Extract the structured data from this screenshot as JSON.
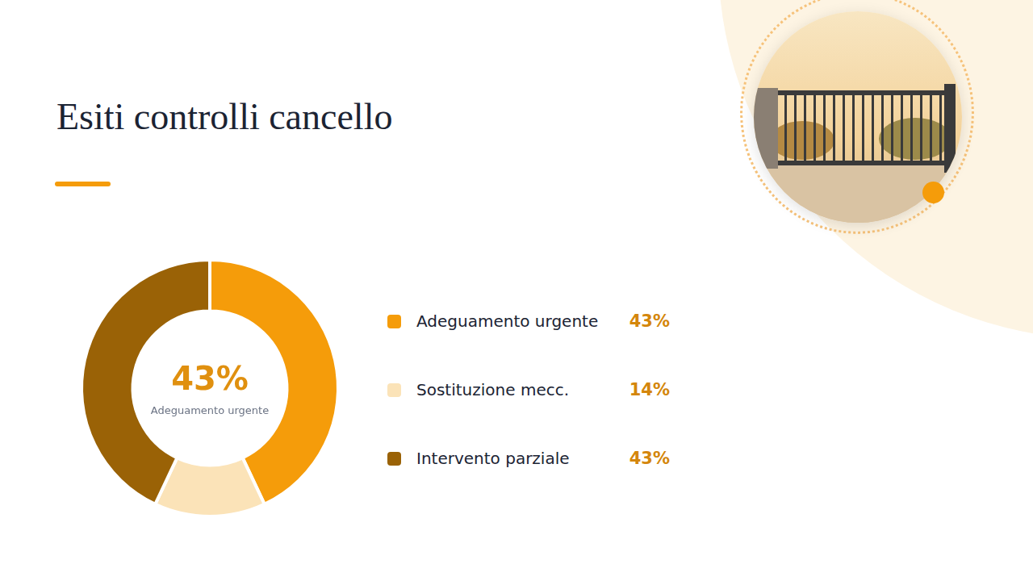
{
  "chart_data": {
    "type": "doughnut",
    "title": "Esiti controlli cancello",
    "categories": [
      "Adeguamento urgente",
      "Sostituzione mecc.",
      "Intervento parziale"
    ],
    "values": [
      43,
      14,
      43
    ],
    "value_labels": [
      "43%",
      "14%",
      "43%"
    ],
    "colors": [
      "#f59c0a",
      "#fbe3b8",
      "#9a6206"
    ],
    "annotations": [
      "43%",
      "Adeguamento urgente"
    ],
    "legend": "right",
    "data_labels": false
  }
}
